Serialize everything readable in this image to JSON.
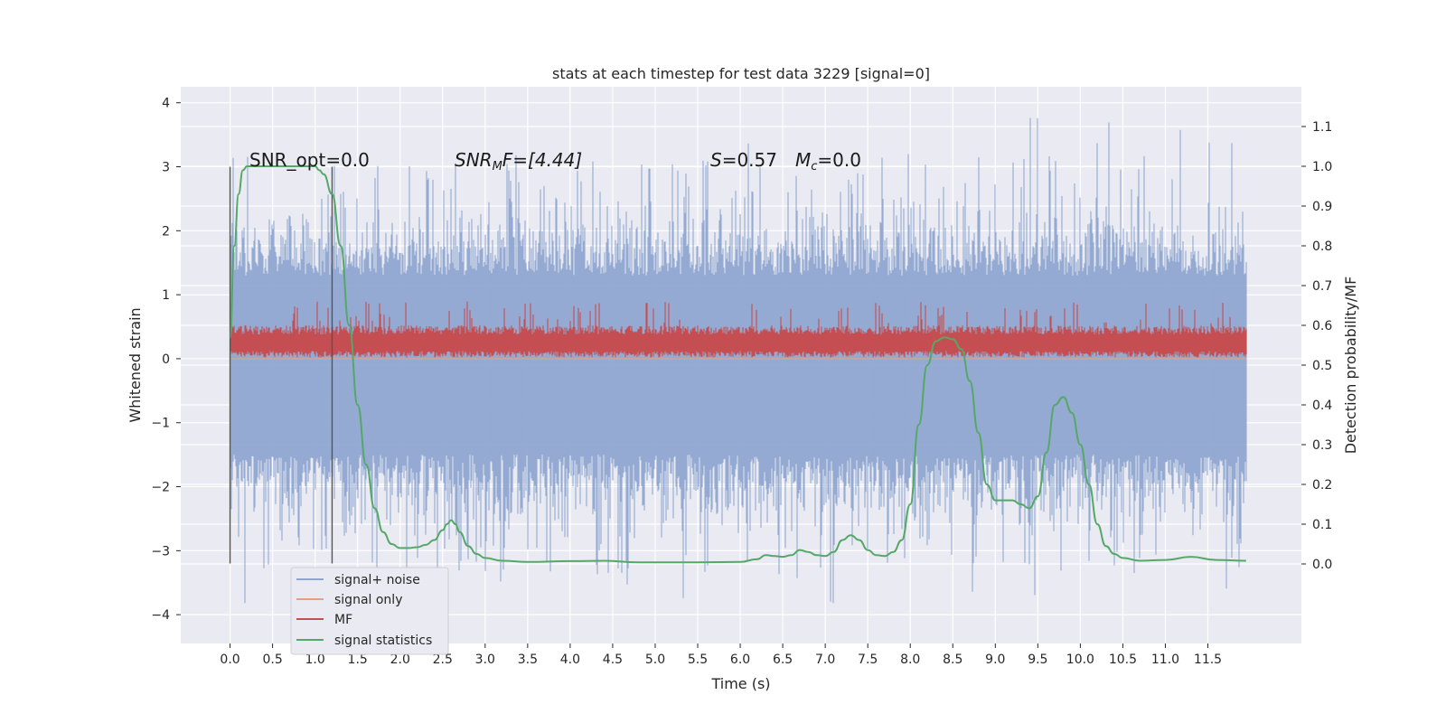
{
  "chart_data": {
    "type": "line",
    "title": "stats at each timestep for test data 3229 [signal=0]",
    "xlabel": "Time (s)",
    "ylabel": "Whitened strain",
    "ylabel_right": "Detection probability/MF",
    "xlim": [
      -0.58,
      12.6
    ],
    "ylim": [
      -4.45,
      4.25
    ],
    "ylim_right": [
      -0.2,
      1.2
    ],
    "x_ticks": [
      "0.0",
      "0.5",
      "1.0",
      "1.5",
      "2.0",
      "2.5",
      "3.0",
      "3.5",
      "4.0",
      "4.5",
      "5.0",
      "5.5",
      "6.0",
      "6.5",
      "7.0",
      "7.5",
      "8.0",
      "8.5",
      "9.0",
      "9.5",
      "10.0",
      "10.5",
      "11.0",
      "11.5"
    ],
    "y_ticks": [
      "4",
      "3",
      "2",
      "1",
      "0",
      "−1",
      "−2",
      "−3",
      "−4"
    ],
    "y_ticks_right": [
      "1.1",
      "1.0",
      "0.9",
      "0.8",
      "0.7",
      "0.6",
      "0.5",
      "0.4",
      "0.3",
      "0.2",
      "0.1",
      "0.0"
    ],
    "grid": true,
    "legend_position": "lower-left",
    "annotations": {
      "snr_opt": "SNR_opt=0.0",
      "snr_mf_label": "SNR",
      "snr_mf_sub": "M",
      "snr_mf_rest": "F=[4.44]",
      "s_label": "S",
      "s_value": "=0.57",
      "mc_label": "M",
      "mc_sub": "c",
      "mc_value": "=0.0"
    },
    "vertical_markers": [
      0.0,
      1.2
    ],
    "series": [
      {
        "name": "signal+ noise",
        "color": "#8fa6d0",
        "axis": "left",
        "description": "whitened strain noise, approx. within -2.5..2.5 with spikes to ~3.9 / -4.1",
        "envelope": {
          "typical_upper": 2.0,
          "typical_lower": -2.4,
          "max": 3.88,
          "min": -4.1
        }
      },
      {
        "name": "signal only",
        "color": "#e8a07e",
        "axis": "left",
        "x": [
          0.0,
          11.95
        ],
        "y": [
          0.0,
          0.0
        ]
      },
      {
        "name": "MF",
        "color": "#c44e52",
        "axis": "left",
        "envelope": {
          "typical_upper": 0.5,
          "typical_lower": 0.05,
          "max": 0.98,
          "min": 0.0
        }
      },
      {
        "name": "signal statistics",
        "color": "#55a868",
        "axis": "right",
        "x": [
          0.0,
          0.05,
          0.1,
          0.15,
          0.2,
          0.3,
          0.5,
          0.7,
          0.9,
          1.0,
          1.05,
          1.1,
          1.2,
          1.3,
          1.4,
          1.5,
          1.6,
          1.7,
          1.8,
          1.9,
          2.0,
          2.1,
          2.2,
          2.3,
          2.4,
          2.5,
          2.55,
          2.6,
          2.65,
          2.7,
          2.8,
          2.9,
          3.0,
          3.2,
          3.5,
          4.0,
          4.4,
          4.8,
          5.5,
          6.0,
          6.2,
          6.3,
          6.4,
          6.5,
          6.6,
          6.7,
          6.8,
          6.9,
          7.0,
          7.1,
          7.2,
          7.3,
          7.4,
          7.5,
          7.6,
          7.7,
          7.8,
          7.9,
          8.0,
          8.1,
          8.2,
          8.3,
          8.4,
          8.5,
          8.6,
          8.7,
          8.8,
          8.9,
          9.0,
          9.1,
          9.2,
          9.3,
          9.4,
          9.5,
          9.6,
          9.7,
          9.8,
          9.9,
          10.0,
          10.1,
          10.2,
          10.3,
          10.4,
          10.5,
          10.7,
          11.0,
          11.3,
          11.6,
          11.95
        ],
        "y": [
          0.57,
          0.8,
          0.93,
          0.99,
          1.0,
          1.0,
          1.0,
          1.0,
          1.0,
          1.0,
          0.99,
          0.98,
          0.93,
          0.8,
          0.6,
          0.4,
          0.25,
          0.14,
          0.08,
          0.05,
          0.04,
          0.04,
          0.042,
          0.048,
          0.06,
          0.085,
          0.1,
          0.11,
          0.1,
          0.08,
          0.045,
          0.025,
          0.015,
          0.008,
          0.005,
          0.007,
          0.008,
          0.004,
          0.004,
          0.005,
          0.012,
          0.022,
          0.02,
          0.018,
          0.022,
          0.035,
          0.03,
          0.022,
          0.02,
          0.03,
          0.06,
          0.072,
          0.06,
          0.035,
          0.022,
          0.02,
          0.03,
          0.06,
          0.15,
          0.35,
          0.5,
          0.56,
          0.57,
          0.565,
          0.54,
          0.46,
          0.33,
          0.2,
          0.16,
          0.16,
          0.16,
          0.15,
          0.14,
          0.17,
          0.28,
          0.4,
          0.42,
          0.38,
          0.3,
          0.2,
          0.1,
          0.045,
          0.025,
          0.015,
          0.008,
          0.01,
          0.018,
          0.01,
          0.008
        ]
      }
    ]
  }
}
